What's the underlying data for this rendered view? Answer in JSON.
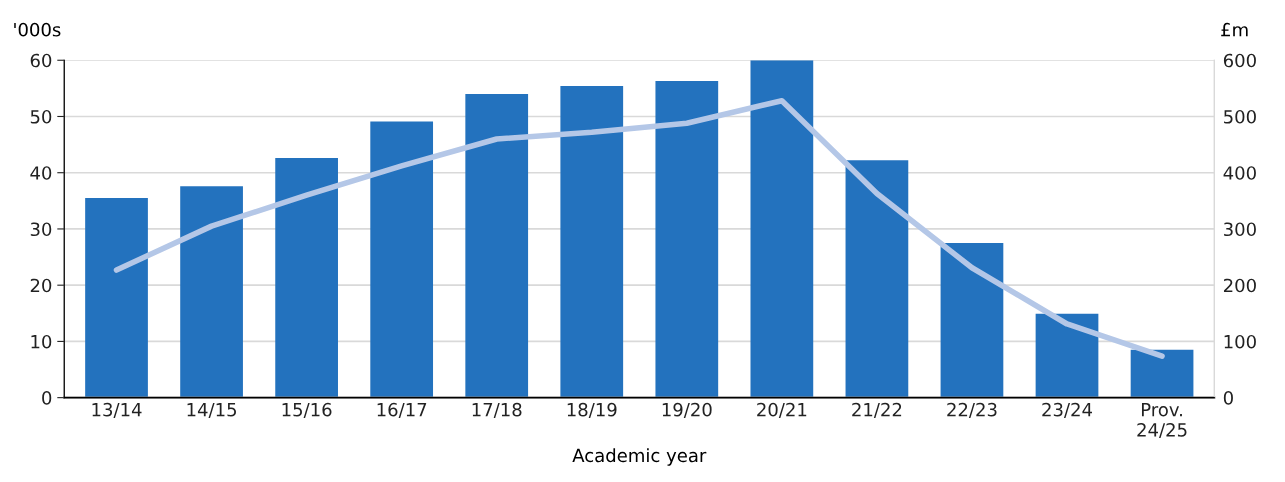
{
  "chart_data": {
    "type": "bar",
    "xlabel": "Academic year",
    "ylabel": "'000s",
    "y2label": "£m",
    "categories": [
      "13/14",
      "14/15",
      "15/16",
      "16/17",
      "17/18",
      "18/19",
      "19/20",
      "20/21",
      "21/22",
      "22/23",
      "23/24",
      "Prov.\n24/25"
    ],
    "series": [
      {
        "color": "#2372be",
        "values": [
          35.5,
          37.6,
          42.6,
          49.1,
          54.0,
          55.4,
          56.3,
          60.0,
          42.2,
          27.5,
          14.9,
          8.5
        ]
      },
      {
        "type": "line",
        "axis": "y2",
        "color": "#b4c7e7",
        "values": [
          227,
          305,
          360,
          412,
          460,
          472,
          488,
          528,
          363,
          231,
          131,
          74
        ]
      }
    ],
    "ylim": [
      0,
      60
    ],
    "yticks": [
      0,
      10,
      20,
      30,
      40,
      50,
      60
    ],
    "y2lim": [
      0,
      600
    ],
    "y2ticks": [
      0,
      100,
      200,
      300,
      400,
      500,
      600
    ],
    "grid": "y",
    "marker": "none",
    "line_style": "solid"
  }
}
